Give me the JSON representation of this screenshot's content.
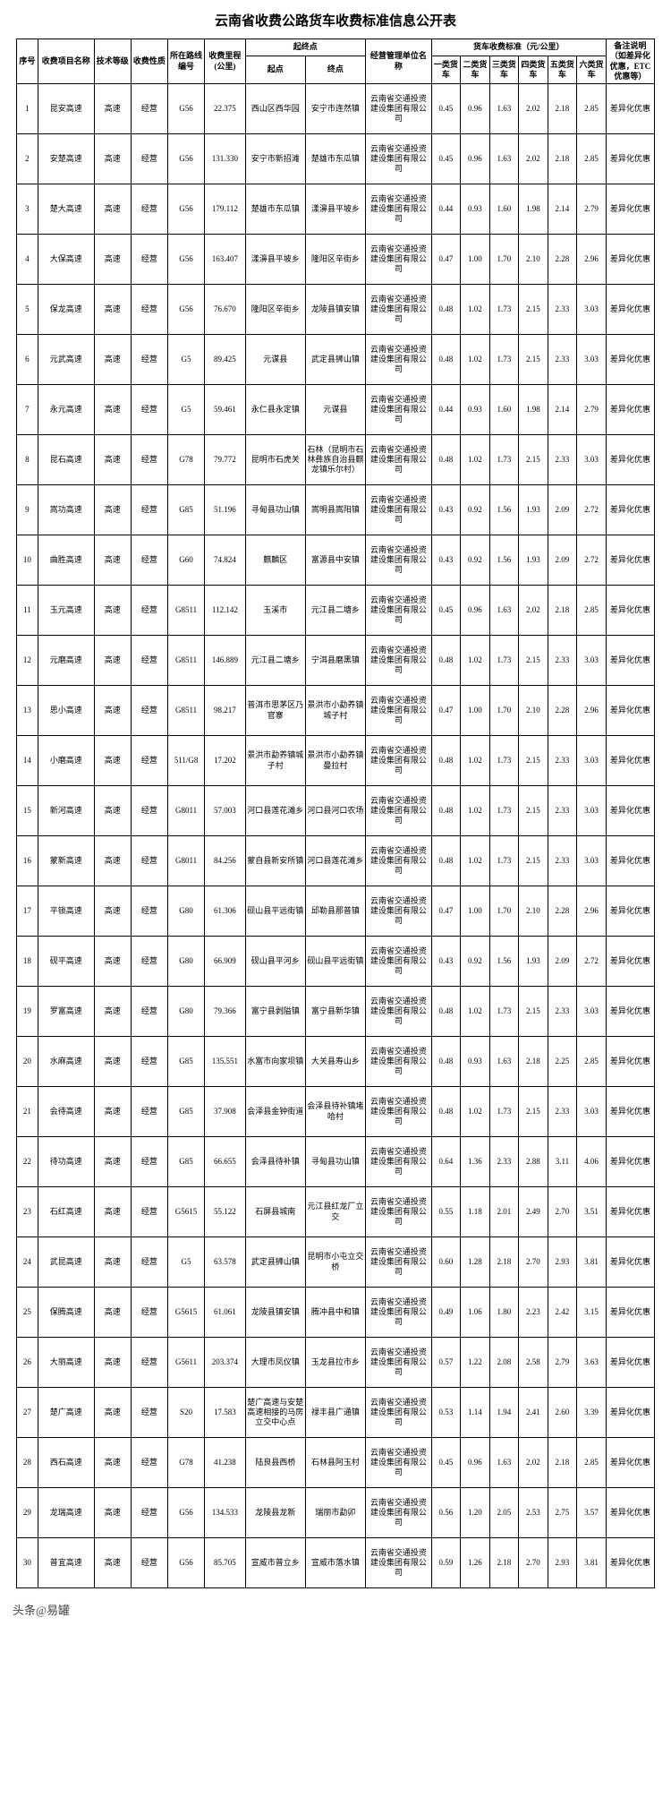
{
  "title": "云南省收费公路货车收费标准信息公开表",
  "footer": "头条@易罐",
  "headers": {
    "seq": "序号",
    "project": "收费项目名称",
    "grade": "技术等级",
    "nature": "收费性质",
    "route": "所在路线编号",
    "dist": "收费里程(公里)",
    "se_group": "起终点",
    "start": "起点",
    "end": "终点",
    "mgmt": "经营管理单位名称",
    "rate_group": "货车收费标准（元/公里）",
    "r1": "一类货车",
    "r2": "二类货车",
    "r3": "三类货车",
    "r4": "四类货车",
    "r5": "五类货车",
    "r6": "六类货车",
    "note": "备注说明（如差异化优惠，ETC优惠等）"
  },
  "grade": "高速",
  "nature": "经营",
  "mgmt": "云南省交通投资建设集团有限公司",
  "note": "差异化优惠",
  "rows": [
    {
      "seq": 1,
      "name": "昆安高速",
      "route": "G56",
      "dist": "22.375",
      "start": "西山区西华园",
      "end": "安宁市连然镇",
      "r": [
        0.45,
        0.96,
        1.63,
        2.02,
        2.18,
        2.85
      ]
    },
    {
      "seq": 2,
      "name": "安楚高速",
      "route": "G56",
      "dist": "131.330",
      "start": "安宁市新招滩",
      "end": "楚雄市东瓜镇",
      "r": [
        0.45,
        0.96,
        1.63,
        2.02,
        2.18,
        2.85
      ]
    },
    {
      "seq": 3,
      "name": "楚大高速",
      "route": "G56",
      "dist": "179.112",
      "start": "楚雄市东瓜镇",
      "end": "漾濞县平坡乡",
      "r": [
        0.44,
        0.93,
        1.6,
        1.98,
        2.14,
        2.79
      ]
    },
    {
      "seq": 4,
      "name": "大保高速",
      "route": "G56",
      "dist": "163.407",
      "start": "漾濞县平坡乡",
      "end": "隆阳区辛街乡",
      "r": [
        0.47,
        1.0,
        1.7,
        2.1,
        2.28,
        2.96
      ]
    },
    {
      "seq": 5,
      "name": "保龙高速",
      "route": "G56",
      "dist": "76.670",
      "start": "隆阳区辛街乡",
      "end": "龙陵县镇安镇",
      "r": [
        0.48,
        1.02,
        1.73,
        2.15,
        2.33,
        3.03
      ]
    },
    {
      "seq": 6,
      "name": "元武高速",
      "route": "G5",
      "dist": "89.425",
      "start": "元谋县",
      "end": "武定县狮山镇",
      "r": [
        0.48,
        1.02,
        1.73,
        2.15,
        2.33,
        3.03
      ]
    },
    {
      "seq": 7,
      "name": "永元高速",
      "route": "G5",
      "dist": "59.461",
      "start": "永仁县永定镇",
      "end": "元谋县",
      "r": [
        0.44,
        0.93,
        1.6,
        1.98,
        2.14,
        2.79
      ]
    },
    {
      "seq": 8,
      "name": "昆石高速",
      "route": "G78",
      "dist": "79.772",
      "start": "昆明市石虎关",
      "end": "石林（昆明市石林彝族自治县麒龙镇乐尔村）",
      "r": [
        0.48,
        1.02,
        1.73,
        2.15,
        2.33,
        3.03
      ]
    },
    {
      "seq": 9,
      "name": "嵩功高速",
      "route": "G85",
      "dist": "51.196",
      "start": "寻甸县功山镇",
      "end": "嵩明县嵩阳镇",
      "r": [
        0.43,
        0.92,
        1.56,
        1.93,
        2.09,
        2.72
      ]
    },
    {
      "seq": 10,
      "name": "曲胜高速",
      "route": "G60",
      "dist": "74.824",
      "start": "麒麟区",
      "end": "富源县中安镇",
      "r": [
        0.43,
        0.92,
        1.56,
        1.93,
        2.09,
        2.72
      ]
    },
    {
      "seq": 11,
      "name": "玉元高速",
      "route": "G8511",
      "dist": "112.142",
      "start": "玉溪市",
      "end": "元江县二塘乡",
      "r": [
        0.45,
        0.96,
        1.63,
        2.02,
        2.18,
        2.85
      ]
    },
    {
      "seq": 12,
      "name": "元磨高速",
      "route": "G8511",
      "dist": "146.889",
      "start": "元江县二塘乡",
      "end": "宁洱县磨黑镇",
      "r": [
        0.48,
        1.02,
        1.73,
        2.15,
        2.33,
        3.03
      ]
    },
    {
      "seq": 13,
      "name": "思小高速",
      "route": "G8511",
      "dist": "98.217",
      "start": "普洱市思茅区乃官寨",
      "end": "景洪市小勐养镇城子村",
      "r": [
        0.47,
        1.0,
        1.7,
        2.1,
        2.28,
        2.96
      ]
    },
    {
      "seq": 14,
      "name": "小磨高速",
      "route": "511/G8",
      "dist": "17.202",
      "start": "景洪市勐养镇城子村",
      "end": "景洪市小勐养镇曼拉村",
      "r": [
        0.48,
        1.02,
        1.73,
        2.15,
        2.33,
        3.03
      ]
    },
    {
      "seq": 15,
      "name": "新河高速",
      "route": "G8011",
      "dist": "57.003",
      "start": "河口县莲花滩乡",
      "end": "河口县河口农场",
      "r": [
        0.48,
        1.02,
        1.73,
        2.15,
        2.33,
        3.03
      ]
    },
    {
      "seq": 16,
      "name": "蒙新高速",
      "route": "G8011",
      "dist": "84.256",
      "start": "蒙自县新安所镇",
      "end": "河口县莲花滩乡",
      "r": [
        0.48,
        1.02,
        1.73,
        2.15,
        2.33,
        3.03
      ]
    },
    {
      "seq": 17,
      "name": "平锁高速",
      "route": "G80",
      "dist": "61.306",
      "start": "砚山县平远街镇",
      "end": "邱勒县那普镇",
      "r": [
        0.47,
        1.0,
        1.7,
        2.1,
        2.28,
        2.96
      ]
    },
    {
      "seq": 18,
      "name": "砚平高速",
      "route": "G80",
      "dist": "66.909",
      "start": "砚山县平河乡",
      "end": "砚山县平远街镇",
      "r": [
        0.43,
        0.92,
        1.56,
        1.93,
        2.09,
        2.72
      ]
    },
    {
      "seq": 19,
      "name": "罗富高速",
      "route": "G80",
      "dist": "79.366",
      "start": "富宁县剥隘镇",
      "end": "富宁县新华镇",
      "r": [
        0.48,
        1.02,
        1.73,
        2.15,
        2.33,
        3.03
      ]
    },
    {
      "seq": 20,
      "name": "水麻高速",
      "route": "G85",
      "dist": "135.551",
      "start": "水富市向家坝镇",
      "end": "大关县寿山乡",
      "r": [
        0.48,
        0.93,
        1.63,
        2.18,
        2.25,
        2.85
      ]
    },
    {
      "seq": 21,
      "name": "会待高速",
      "route": "G85",
      "dist": "37.908",
      "start": "会泽县金钟街道",
      "end": "会泽县待补镇堵哈村",
      "r": [
        0.48,
        1.02,
        1.73,
        2.15,
        2.33,
        3.03
      ]
    },
    {
      "seq": 22,
      "name": "待功高速",
      "route": "G85",
      "dist": "66.655",
      "start": "会泽县待补镇",
      "end": "寻甸县功山镇",
      "r": [
        0.64,
        1.36,
        2.33,
        2.88,
        3.11,
        4.06
      ]
    },
    {
      "seq": 23,
      "name": "石红高速",
      "route": "G5615",
      "dist": "55.122",
      "start": "石屏县城南",
      "end": "元江县红龙厂立交",
      "r": [
        0.55,
        1.18,
        2.01,
        2.49,
        2.7,
        3.51
      ]
    },
    {
      "seq": 24,
      "name": "武昆高速",
      "route": "G5",
      "dist": "63.578",
      "start": "武定县狮山镇",
      "end": "昆明市小屯立交桥",
      "r": [
        0.6,
        1.28,
        2.18,
        2.7,
        2.93,
        3.81
      ]
    },
    {
      "seq": 25,
      "name": "保腾高速",
      "route": "G5615",
      "dist": "61.061",
      "start": "龙陵县镇安镇",
      "end": "腾冲县中和镇",
      "r": [
        0.49,
        1.06,
        1.8,
        2.23,
        2.42,
        3.15
      ]
    },
    {
      "seq": 26,
      "name": "大丽高速",
      "route": "G5611",
      "dist": "203.374",
      "start": "大理市凤仪镇",
      "end": "玉龙县拉市乡",
      "r": [
        0.57,
        1.22,
        2.08,
        2.58,
        2.79,
        3.63
      ]
    },
    {
      "seq": 27,
      "name": "楚广高速",
      "route": "S20",
      "dist": "17.583",
      "start": "楚广高速与安楚高速相接的马房立交中心点",
      "end": "禄丰县广通镇",
      "r": [
        0.53,
        1.14,
        1.94,
        2.41,
        2.6,
        3.39
      ]
    },
    {
      "seq": 28,
      "name": "西石高速",
      "route": "G78",
      "dist": "41.238",
      "start": "陆良县西桥",
      "end": "石林县阿玉村",
      "r": [
        0.45,
        0.96,
        1.63,
        2.02,
        2.18,
        2.85
      ]
    },
    {
      "seq": 29,
      "name": "龙瑞高速",
      "route": "G56",
      "dist": "134.533",
      "start": "龙陵县龙新",
      "end": "瑞丽市勐卯",
      "r": [
        0.56,
        1.2,
        2.05,
        2.53,
        2.75,
        3.57
      ]
    },
    {
      "seq": 30,
      "name": "普宜高速",
      "route": "G56",
      "dist": "85.705",
      "start": "宣威市普立乡",
      "end": "宣威市落水镇",
      "r": [
        0.59,
        1.26,
        2.18,
        2.7,
        2.93,
        3.81
      ]
    }
  ]
}
